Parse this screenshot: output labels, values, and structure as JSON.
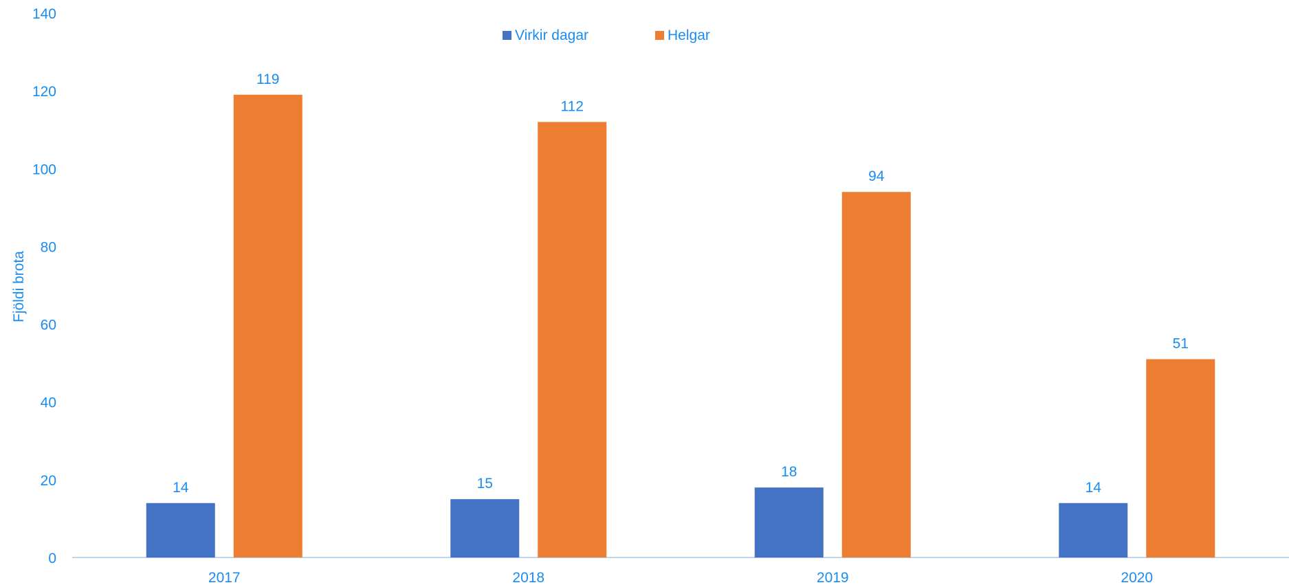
{
  "chart_data": {
    "type": "bar",
    "title": "",
    "xlabel": "",
    "ylabel": "Fjöldi brota",
    "ylim": [
      0,
      140
    ],
    "yticks": [
      "0",
      "20",
      "40",
      "60",
      "80",
      "100",
      "120",
      "140"
    ],
    "categories": [
      "2017",
      "2018",
      "2019",
      "2020"
    ],
    "series": [
      {
        "name": "Virkir dagar",
        "color": "#4472c4",
        "values": [
          14,
          15,
          18,
          14
        ]
      },
      {
        "name": "Helgar",
        "color": "#ed7d31",
        "values": [
          119,
          112,
          94,
          51
        ]
      }
    ],
    "legend_position": "top-center",
    "grid": false,
    "data_labels": true,
    "text_color": "#1a8cf0",
    "axis_color": "#bdd7ee"
  }
}
